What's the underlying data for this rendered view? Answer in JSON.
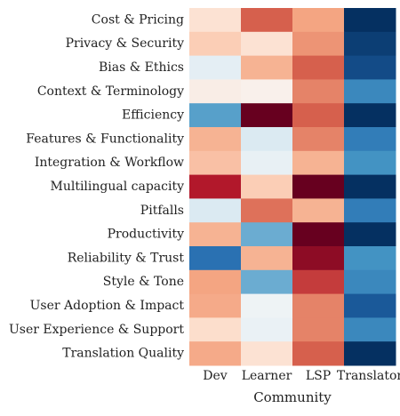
{
  "chart_data": {
    "type": "heatmap",
    "xlabel": "Community",
    "x_categories": [
      "Dev",
      "Learner",
      "LSP",
      "Translator"
    ],
    "y_categories": [
      "Cost & Pricing",
      "Privacy & Security",
      "Bias & Ethics",
      "Context & Terminology",
      "Efficiency",
      "Features & Functionality",
      "Integration & Workflow",
      "Multilingual capacity",
      "Pitfalls",
      "Productivity",
      "Reliability & Trust",
      "Style & Tone",
      "User Adoption & Impact",
      "User Experience & Support",
      "Translation Quality"
    ],
    "values": [
      [
        0.15,
        0.6,
        0.4,
        -1.0
      ],
      [
        0.25,
        0.15,
        0.45,
        -0.95
      ],
      [
        -0.1,
        0.35,
        0.6,
        -0.9
      ],
      [
        0.07,
        0.05,
        0.5,
        -0.65
      ],
      [
        -0.55,
        1.0,
        0.6,
        -1.0
      ],
      [
        0.35,
        -0.15,
        0.5,
        -0.7
      ],
      [
        0.3,
        -0.08,
        0.35,
        -0.6
      ],
      [
        0.8,
        0.25,
        1.0,
        -1.0
      ],
      [
        -0.15,
        0.55,
        0.35,
        -0.7
      ],
      [
        0.35,
        -0.5,
        1.0,
        -1.0
      ],
      [
        -0.75,
        0.35,
        0.9,
        -0.6
      ],
      [
        0.4,
        -0.5,
        0.7,
        -0.65
      ],
      [
        0.38,
        -0.05,
        0.5,
        -0.85
      ],
      [
        0.18,
        -0.07,
        0.5,
        -0.65
      ],
      [
        0.38,
        0.15,
        0.6,
        -1.0
      ]
    ],
    "colormap": "RdBu_r",
    "zlim": [
      -1,
      1
    ]
  }
}
